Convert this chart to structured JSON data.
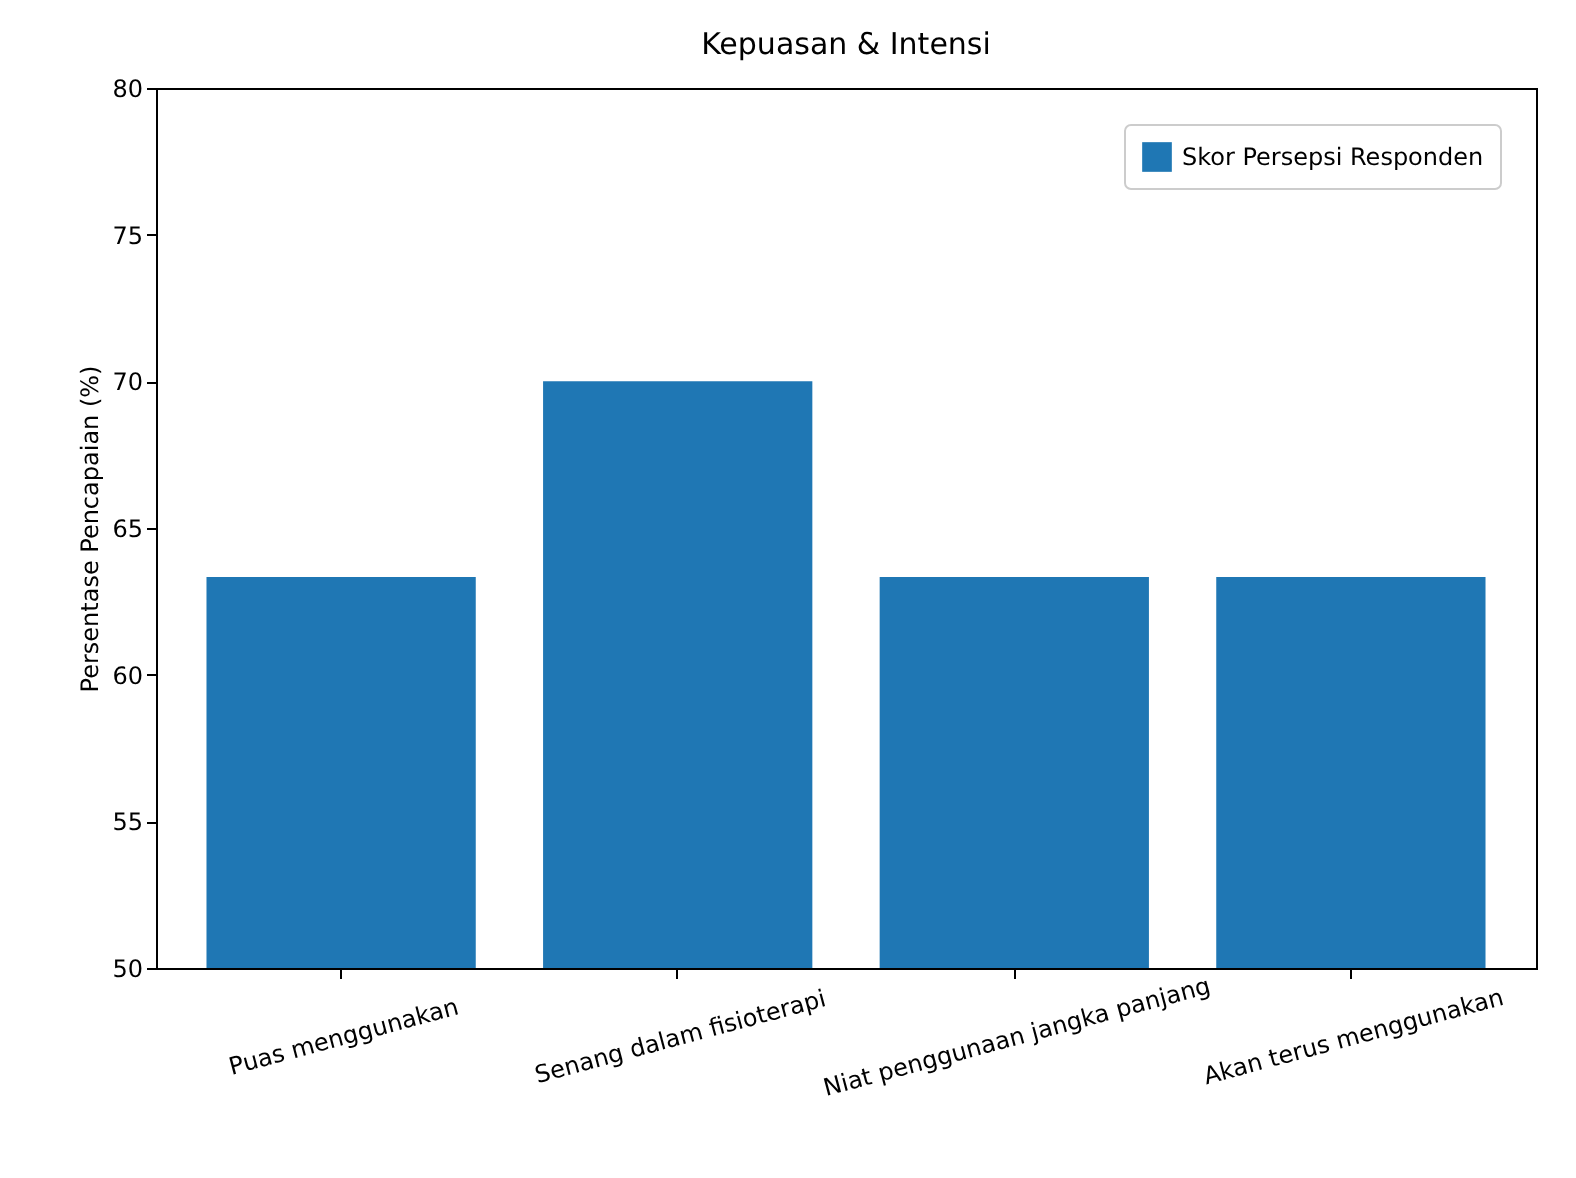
{
  "chart_data": {
    "type": "bar",
    "title": "Kepuasan & Intensi",
    "ylabel": "Persentase Pencapaian (%)",
    "categories": [
      "Puas menggunakan",
      "Senang dalam fisioterapi",
      "Niat penggunaan jangka panjang",
      "Akan terus menggunakan"
    ],
    "series": [
      {
        "name": "Skor Persepsi Responden",
        "color": "#1f77b4",
        "values": [
          63.33,
          70,
          63.33,
          63.33
        ]
      }
    ],
    "ylim": [
      50,
      80
    ],
    "yticks": [
      50,
      55,
      60,
      65,
      70,
      75,
      80
    ],
    "legend": "top right",
    "grid": false
  }
}
